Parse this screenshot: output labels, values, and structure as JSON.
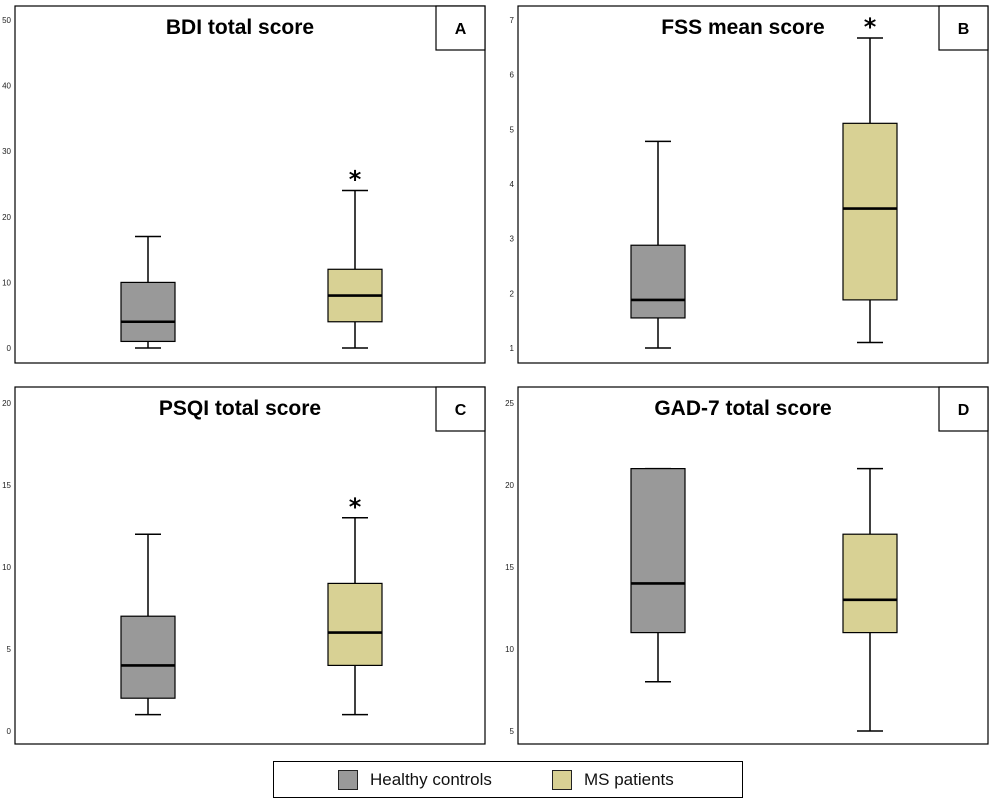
{
  "colors": {
    "healthy": "#999999",
    "ms": "#d8d194",
    "stroke": "#000000",
    "panel_border": "#000000"
  },
  "legend": {
    "items": [
      {
        "label": "Healthy controls",
        "color": "#999999"
      },
      {
        "label": "MS patients",
        "color": "#d8d194"
      }
    ]
  },
  "chart_data": [
    {
      "type": "boxplot",
      "panel": "A",
      "title": "BDI total score",
      "ylim": [
        0,
        50
      ],
      "yticks": [
        0,
        10,
        20,
        30,
        40,
        50
      ],
      "series": [
        {
          "name": "Healthy controls",
          "min": 0,
          "q1": 1,
          "median": 4,
          "q3": 10,
          "max": 17,
          "significant": false
        },
        {
          "name": "MS patients",
          "min": 0,
          "q1": 4,
          "median": 8,
          "q3": 12,
          "max": 24,
          "significant": true
        }
      ]
    },
    {
      "type": "boxplot",
      "panel": "B",
      "title": "FSS mean score",
      "ylim": [
        1,
        7
      ],
      "yticks": [
        1,
        2,
        3,
        4,
        5,
        6,
        7
      ],
      "series": [
        {
          "name": "Healthy controls",
          "min": 1,
          "q1": 1.55,
          "median": 1.88,
          "q3": 2.88,
          "max": 4.78,
          "significant": false
        },
        {
          "name": "MS patients",
          "min": 1.1,
          "q1": 1.88,
          "median": 3.55,
          "q3": 5.11,
          "max": 6.67,
          "significant": true
        }
      ]
    },
    {
      "type": "boxplot",
      "panel": "C",
      "title": "PSQI total score",
      "ylim": [
        0,
        20
      ],
      "yticks": [
        0,
        5,
        10,
        15,
        20
      ],
      "series": [
        {
          "name": "Healthy controls",
          "min": 1,
          "q1": 2,
          "median": 4,
          "q3": 7,
          "max": 12,
          "significant": false
        },
        {
          "name": "MS patients",
          "min": 1,
          "q1": 4,
          "median": 6,
          "q3": 9,
          "max": 13,
          "significant": true
        }
      ]
    },
    {
      "type": "boxplot",
      "panel": "D",
      "title": "GAD-7 total score",
      "ylim": [
        5,
        25
      ],
      "yticks": [
        5,
        10,
        15,
        20,
        25
      ],
      "series": [
        {
          "name": "Healthy controls",
          "min": 8,
          "q1": 11,
          "median": 14,
          "q3": 21,
          "max": 21,
          "significant": false
        },
        {
          "name": "MS patients",
          "min": 5,
          "q1": 11,
          "median": 13,
          "q3": 17,
          "max": 21,
          "significant": false
        }
      ]
    }
  ]
}
